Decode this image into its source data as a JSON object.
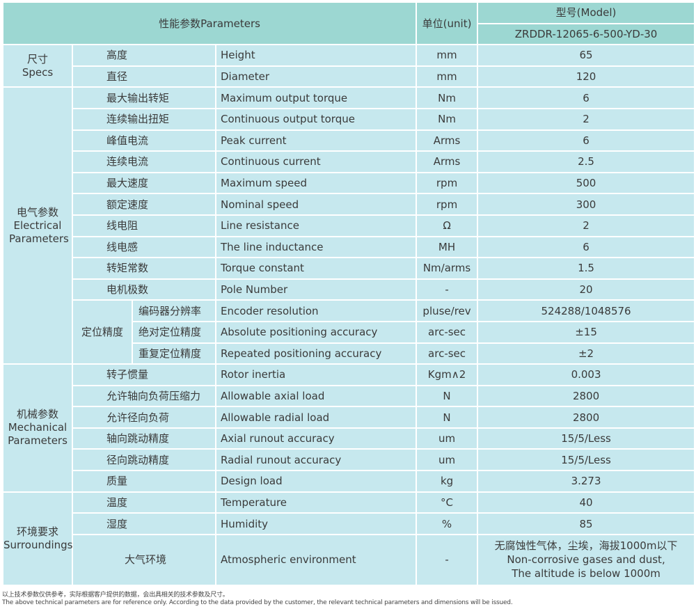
{
  "header": {
    "params": "性能参数Parameters",
    "unit": "单位(unit)",
    "model_label": "型号(Model)",
    "model": "ZRDDR-12065-6-500-YD-30"
  },
  "groups": [
    {
      "zh": "尺寸",
      "en": "Specs",
      "rows": [
        {
          "zh": "高度",
          "en": "Height",
          "unit": "mm",
          "value": "65"
        },
        {
          "zh": "直径",
          "en": "Diameter",
          "unit": "mm",
          "value": "120"
        }
      ]
    },
    {
      "zh": "电气参数",
      "en": "Electrical Parameters",
      "rows": [
        {
          "zh": "最大输出转矩",
          "en": "Maximum output torque",
          "unit": "Nm",
          "value": "6"
        },
        {
          "zh": "连续输出扭矩",
          "en": "Continuous output torque",
          "unit": "Nm",
          "value": "2"
        },
        {
          "zh": "峰值电流",
          "en": "Peak current",
          "unit": "Arms",
          "value": "6"
        },
        {
          "zh": "连续电流",
          "en": "Continuous current",
          "unit": "Arms",
          "value": "2.5"
        },
        {
          "zh": "最大速度",
          "en": "Maximum speed",
          "unit": "rpm",
          "value": "500"
        },
        {
          "zh": "额定速度",
          "en": "Nominal speed",
          "unit": "rpm",
          "value": "300"
        },
        {
          "zh": "线电阻",
          "en": "Line resistance",
          "unit": "Ω",
          "value": "2"
        },
        {
          "zh": "线电感",
          "en": "The line inductance",
          "unit": "MH",
          "value": "6"
        },
        {
          "zh": "转矩常数",
          "en": "Torque constant",
          "unit": "Nm/arms",
          "value": "1.5"
        },
        {
          "zh": "电机极数",
          "en": "Pole Number",
          "unit": "-",
          "value": "20"
        },
        {
          "sub": "定位精度",
          "zh": "编码器分辨率",
          "en": "Encoder resolution",
          "unit": "pluse/rev",
          "value": "524288/1048576"
        },
        {
          "sub": "定位精度",
          "zh": "绝对定位精度",
          "en": "Absolute positioning accuracy",
          "unit": "arc-sec",
          "value": "±15"
        },
        {
          "sub": "定位精度",
          "zh": "重复定位精度",
          "en": "Repeated positioning accuracy",
          "unit": "arc-sec",
          "value": "±2"
        }
      ]
    },
    {
      "zh": "机械参数",
      "en": "Mechanical Parameters",
      "rows": [
        {
          "zh": "转子惯量",
          "en": "Rotor inertia",
          "unit": "Kgm∧2",
          "value": "0.003"
        },
        {
          "zh": "允许轴向负荷压缩力",
          "en": "Allowable axial load",
          "unit": "N",
          "value": "2800"
        },
        {
          "zh": "允许径向负荷",
          "en": "Allowable radial load",
          "unit": "N",
          "value": "2800"
        },
        {
          "zh": "轴向跳动精度",
          "en": "Axial runout accuracy",
          "unit": "um",
          "value": "15/5/Less"
        },
        {
          "zh": "径向跳动精度",
          "en": "Radial runout accuracy",
          "unit": "um",
          "value": "15/5/Less"
        },
        {
          "zh": "质量",
          "en": "Design load",
          "unit": "kg",
          "value": "3.273"
        }
      ]
    },
    {
      "zh": "环境要求",
      "en": "Surroundings",
      "rows": [
        {
          "zh": "温度",
          "en": "Temperature",
          "unit": "°C",
          "value": "40"
        },
        {
          "zh": "湿度",
          "en": "Humidity",
          "unit": "%",
          "value": "85"
        },
        {
          "zh": "大气环境",
          "en": "Atmospheric environment",
          "unit": "-",
          "value": "无腐蚀性气体，尘埃，海拔1000m以下\nNon-corrosive gases and dust,\nThe altitude is below 1000m",
          "tall": true
        }
      ]
    }
  ],
  "footnote": {
    "zh": "以上技术参数仅供参考，实际根据客户提供的数据，会出具相关的技术参数及尺寸。",
    "en": "The above technical parameters are for reference only. According to the data provided by the customer, the relevant technical parameters and dimensions will be issued."
  },
  "colors": {
    "header": "#9cd7d2",
    "body": "#c6e8ee",
    "text": "#3a3a3a"
  }
}
